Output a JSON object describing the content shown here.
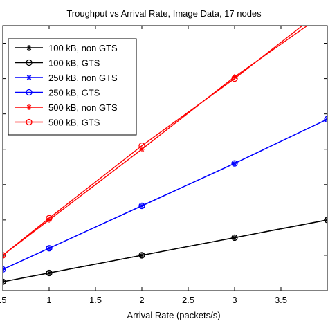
{
  "chart_data": {
    "type": "line",
    "title": "Troughput vs Arrival Rate, Image Data, 17 nodes",
    "xlabel": "Arrival Rate (packets/s)",
    "ylabel": "",
    "xlim": [
      0.5,
      4.0
    ],
    "ylim": [
      0,
      7.5
    ],
    "x_ticks": [
      0.5,
      1,
      1.5,
      2,
      2.5,
      3,
      3.5
    ],
    "x_tick_labels": [
      ".5",
      "1",
      "1.5",
      "2",
      "2.5",
      "3",
      "3.5"
    ],
    "grid": false,
    "legend_position": "top-left",
    "x": [
      0.5,
      1,
      2,
      3,
      4
    ],
    "series": [
      {
        "name": "100 kB, non GTS",
        "color": "#000000",
        "marker": "star",
        "values": [
          0.25,
          0.5,
          1.0,
          1.5,
          2.0
        ]
      },
      {
        "name": "100 kB, GTS",
        "color": "#000000",
        "marker": "circle",
        "values": [
          0.25,
          0.5,
          1.0,
          1.5,
          2.0
        ]
      },
      {
        "name": "250 kB, non GTS",
        "color": "#0000ff",
        "marker": "star",
        "values": [
          0.6,
          1.2,
          2.4,
          3.6,
          4.85
        ]
      },
      {
        "name": "250 kB, GTS",
        "color": "#0000ff",
        "marker": "circle",
        "values": [
          0.6,
          1.2,
          2.4,
          3.6,
          4.85
        ]
      },
      {
        "name": "500 kB, non GTS",
        "color": "#ff0000",
        "marker": "star",
        "values": [
          1.0,
          2.0,
          4.0,
          6.05,
          7.9
        ]
      },
      {
        "name": "500 kB, GTS",
        "color": "#ff0000",
        "marker": "circle",
        "values": [
          1.0,
          2.05,
          4.1,
          6.0,
          8.05
        ]
      }
    ]
  }
}
